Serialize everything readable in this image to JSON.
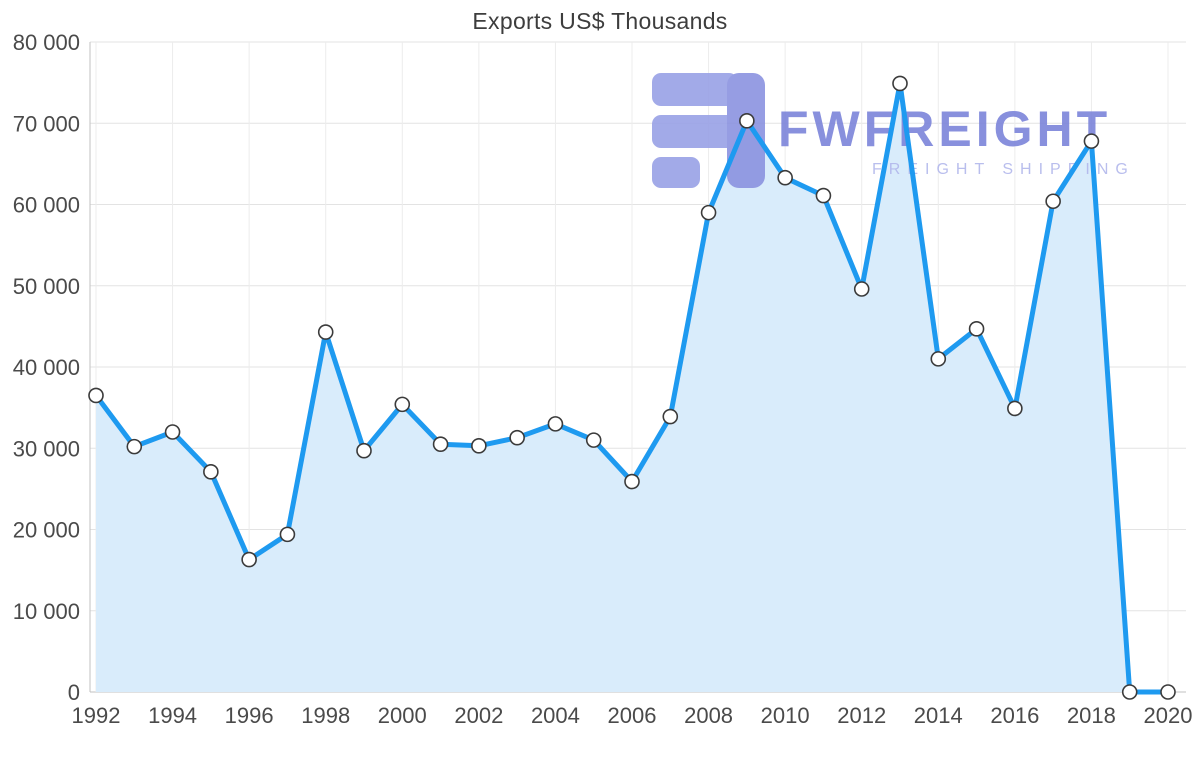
{
  "chart_data": {
    "type": "area",
    "title": "Exports US$ Thousands",
    "x": [
      1992,
      1993,
      1994,
      1995,
      1996,
      1997,
      1998,
      1999,
      2000,
      2001,
      2002,
      2003,
      2004,
      2005,
      2006,
      2007,
      2008,
      2009,
      2010,
      2011,
      2012,
      2013,
      2014,
      2015,
      2016,
      2017,
      2018,
      2019,
      2020
    ],
    "values": [
      36500,
      30200,
      32000,
      27100,
      16300,
      19400,
      44300,
      29700,
      35400,
      30500,
      30300,
      31300,
      33000,
      31000,
      25900,
      33900,
      59000,
      70300,
      63300,
      61100,
      49600,
      74900,
      41000,
      44700,
      34900,
      60400,
      67800,
      0,
      0
    ],
    "xlabel": "",
    "ylabel": "",
    "ylim": [
      0,
      80000
    ],
    "y_tick_step": 10000,
    "x_tick_step": 2,
    "grid": true,
    "legend": "none",
    "line_color": "#1e9af0",
    "area_color": "#d9ecfb",
    "marker_fill": "#ffffff",
    "marker_stroke": "#3b3b3b",
    "axis_label_color": "#4a4a4a",
    "gridline_color": "#e3e3e3",
    "axis_line_color": "#c2c2c2"
  },
  "watermark": {
    "brand": "FWFREIGHT",
    "tagline": "FREIGHT SHIPPING",
    "icon_color": "#99a1e6",
    "icon_accent_color": "#8b93e0",
    "text_color": "#7c84da",
    "tagline_color": "#b2b7ec"
  }
}
